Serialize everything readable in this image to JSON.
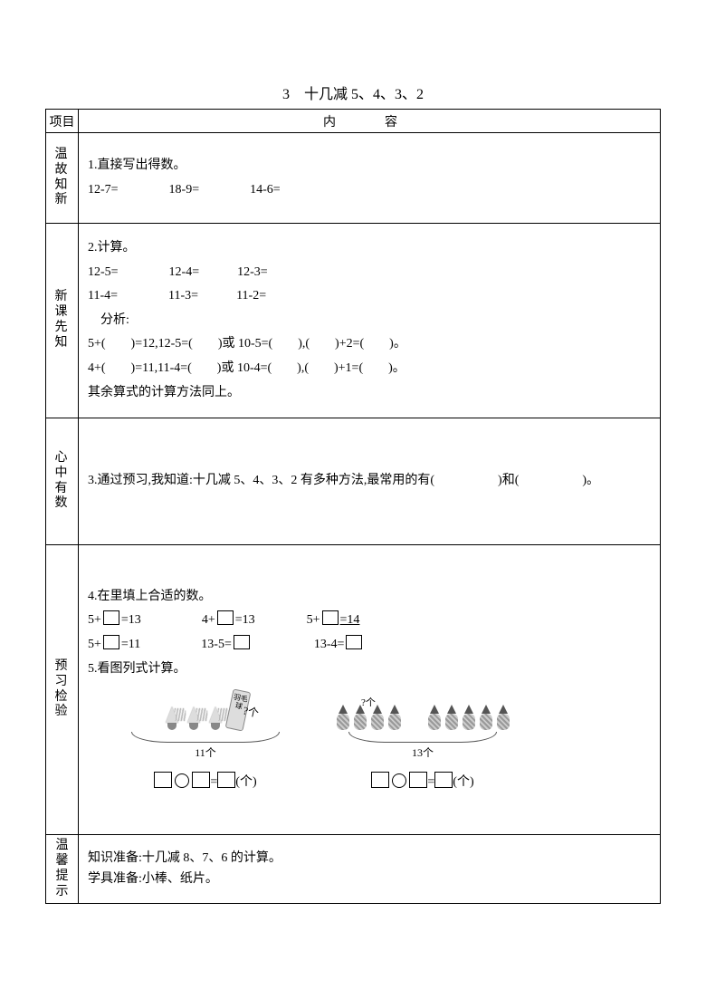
{
  "title": "3　十几减 5、4、3、2",
  "headers": {
    "project": "项目",
    "content": "内　容"
  },
  "row1": {
    "side": "温故知新",
    "q1_label": "1.直接写出得数。",
    "q1_eqs": "12-7=　　　　18-9=　　　　14-6="
  },
  "row2": {
    "side": "新课先知",
    "q2_label": "2.计算。",
    "line_a": "12-5=　　　　12-4=　　　12-3=",
    "line_b": "11-4=　　　　11-3=　　　11-2=",
    "analysis": "　分析:",
    "line_c": "5+(　　)=12,12-5=(　　)或 10-5=(　　),(　　)+2=(　　)。",
    "line_d": "4+(　　)=11,11-4=(　　)或 10-4=(　　),(　　)+1=(　　)。",
    "line_e": "其余算式的计算方法同上。"
  },
  "row3": {
    "side": "心中有数",
    "text": "3.通过预习,我知道:十几减 5、4、3、2 有多种方法,最常用的有(　　　　　)和(　　　　　)。"
  },
  "row4": {
    "side": "预习检验",
    "q4_label": "4.在里填上合适的数。",
    "eq_a1": "5+",
    "eq_a2": "=13",
    "eq_b1": "4+",
    "eq_b2": "=13",
    "eq_c1": "5+",
    "eq_c2": "=14",
    "eq_d1": "5+",
    "eq_d2": "=11",
    "eq_e1": "13-5=",
    "eq_f1": "13-4=",
    "q5_label": "5.看图列式计算。",
    "tube_label": "羽毛球",
    "pic1_count": "11个",
    "pic2_count": "13个",
    "unit": "(个)",
    "qmark": "?个"
  },
  "row5": {
    "side": "温馨提示",
    "line1": "知识准备:十几减 8、7、6 的计算。",
    "line2": "学具准备:小棒、纸片。"
  }
}
